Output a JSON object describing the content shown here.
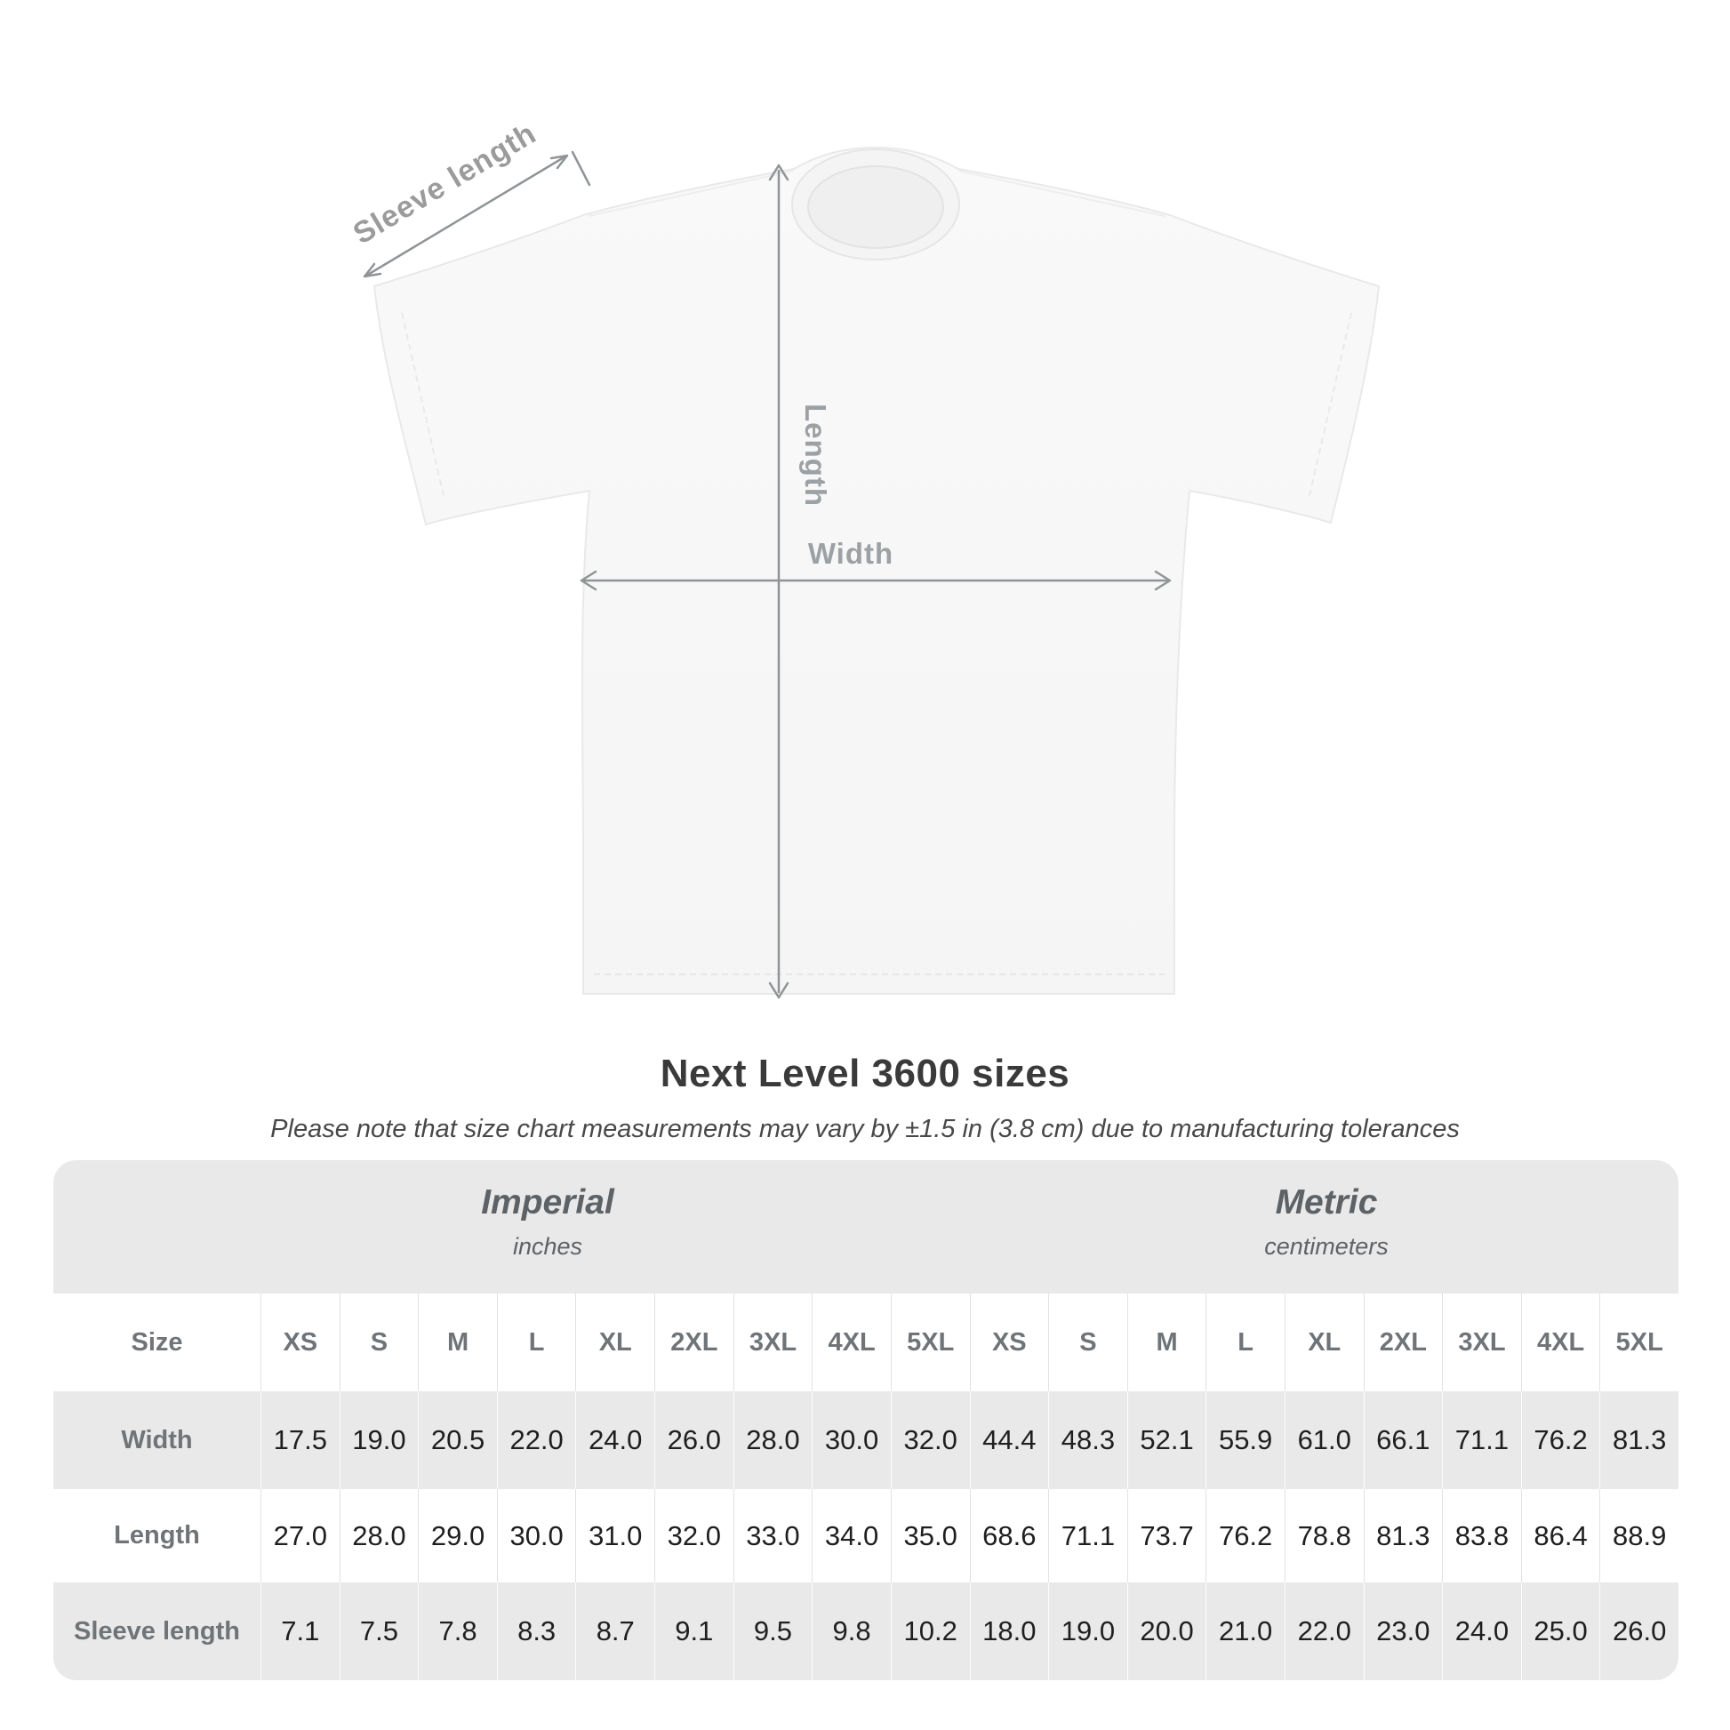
{
  "title": "Next Level 3600 sizes",
  "subtitle": "Please note that size chart measurements may vary by ±1.5 in (3.8 cm) due to manufacturing tolerances",
  "diagram": {
    "sleeve_label": "Sleeve length",
    "length_label": "Length",
    "width_label": "Width"
  },
  "table": {
    "groups": [
      {
        "label": "Imperial",
        "sublabel": "inches"
      },
      {
        "label": "Metric",
        "sublabel": "centimeters"
      }
    ],
    "size_header": "Size",
    "sizes": [
      "XS",
      "S",
      "M",
      "L",
      "XL",
      "2XL",
      "3XL",
      "4XL",
      "5XL",
      "XS",
      "S",
      "M",
      "L",
      "XL",
      "2XL",
      "3XL",
      "4XL",
      "5XL"
    ],
    "rows": [
      {
        "label": "Width",
        "values": [
          "17.5",
          "19.0",
          "20.5",
          "22.0",
          "24.0",
          "26.0",
          "28.0",
          "30.0",
          "32.0",
          "44.4",
          "48.3",
          "52.1",
          "55.9",
          "61.0",
          "66.1",
          "71.1",
          "76.2",
          "81.3"
        ]
      },
      {
        "label": "Length",
        "values": [
          "27.0",
          "28.0",
          "29.0",
          "30.0",
          "31.0",
          "32.0",
          "33.0",
          "34.0",
          "35.0",
          "68.6",
          "71.1",
          "73.7",
          "76.2",
          "78.8",
          "81.3",
          "83.8",
          "86.4",
          "88.9"
        ]
      },
      {
        "label": "Sleeve length",
        "values": [
          "7.1",
          "7.5",
          "7.8",
          "8.3",
          "8.7",
          "9.1",
          "9.5",
          "9.8",
          "10.2",
          "18.0",
          "19.0",
          "20.0",
          "21.0",
          "22.0",
          "23.0",
          "24.0",
          "25.0",
          "26.0"
        ]
      }
    ]
  },
  "colors": {
    "card_bg": "#e9e9e9",
    "row_white": "#ffffff",
    "value_text": "#1f1f1f",
    "header_text": "#6e7478",
    "group_text": "#5d6266",
    "arrow_gray": "#8f9496",
    "diagram_label_gray": "#9ba1a4",
    "shirt_fill": "#f7f7f7"
  }
}
